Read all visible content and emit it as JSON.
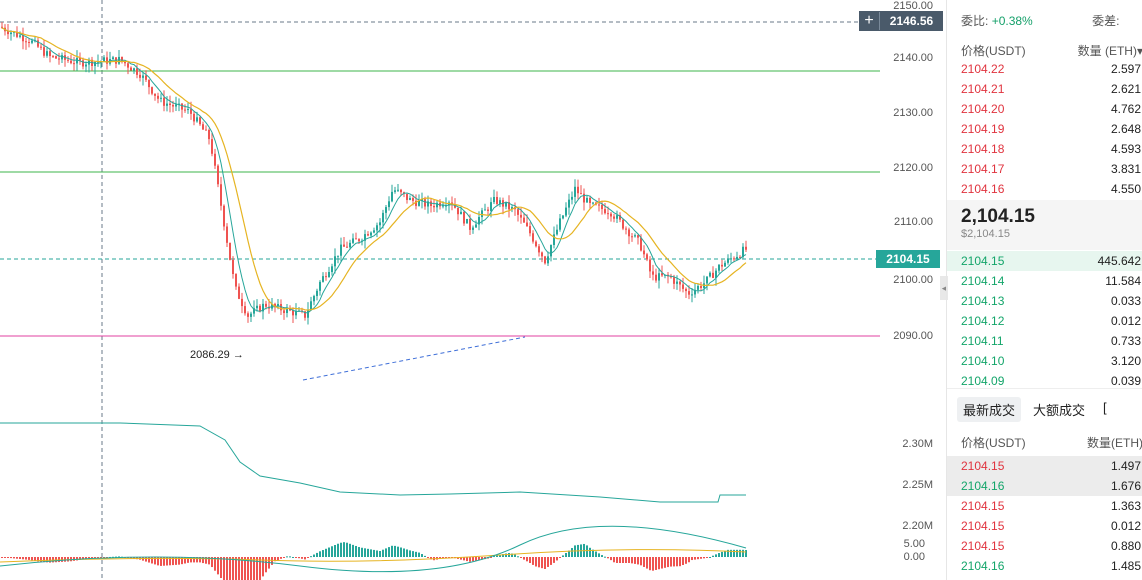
{
  "chart": {
    "price_axis_ticks": [
      "2150.00",
      "2140.00",
      "2130.00",
      "2120.00",
      "2110.00",
      "2100.00",
      "2090.00"
    ],
    "vol_axis_ticks": [
      "2.30M",
      "2.25M",
      "2.20M"
    ],
    "macd_axis_ticks": [
      "5.00",
      "0.00"
    ],
    "crosshair_price": "2146.56",
    "last_price": "2104.15",
    "low_marker_label": "2086.29",
    "colors": {
      "up": "#26a69a",
      "down": "#ef5350",
      "ma_fast": "#26a69a",
      "ma_slow": "#e6b422",
      "hline_green": "#3cb44b",
      "hline_pink": "#e040a0",
      "dash_blue": "#3f6fd8"
    }
  },
  "orderbook": {
    "ratio_label": "委比:",
    "ratio_value": "+0.38%",
    "diff_label": "委差:",
    "col_price": "价格(USDT)",
    "col_qty": "数量 (ETH)",
    "asks": [
      {
        "p": "2104.22",
        "q": "2.597"
      },
      {
        "p": "2104.21",
        "q": "2.621"
      },
      {
        "p": "2104.20",
        "q": "4.762"
      },
      {
        "p": "2104.19",
        "q": "2.648"
      },
      {
        "p": "2104.18",
        "q": "4.593"
      },
      {
        "p": "2104.17",
        "q": "3.831"
      },
      {
        "p": "2104.16",
        "q": "4.550"
      }
    ],
    "mid_price": "2,104.15",
    "mid_usd": "$2,104.15",
    "bids": [
      {
        "p": "2104.15",
        "q": "445.642"
      },
      {
        "p": "2104.14",
        "q": "11.584"
      },
      {
        "p": "2104.13",
        "q": "0.033"
      },
      {
        "p": "2104.12",
        "q": "0.012"
      },
      {
        "p": "2104.11",
        "q": "0.733"
      },
      {
        "p": "2104.10",
        "q": "3.120"
      },
      {
        "p": "2104.09",
        "q": "0.039"
      }
    ]
  },
  "trades": {
    "tab_latest": "最新成交",
    "tab_large": "大额成交",
    "col_price": "价格(USDT)",
    "col_qty": "数量(ETH)",
    "rows": [
      {
        "p": "2104.15",
        "q": "1.497",
        "side": "sell"
      },
      {
        "p": "2104.16",
        "q": "1.676",
        "side": "buy"
      },
      {
        "p": "2104.15",
        "q": "1.363",
        "side": "sell"
      },
      {
        "p": "2104.15",
        "q": "0.012",
        "side": "sell"
      },
      {
        "p": "2104.15",
        "q": "0.880",
        "side": "sell"
      },
      {
        "p": "2104.16",
        "q": "1.485",
        "side": "buy"
      }
    ]
  }
}
